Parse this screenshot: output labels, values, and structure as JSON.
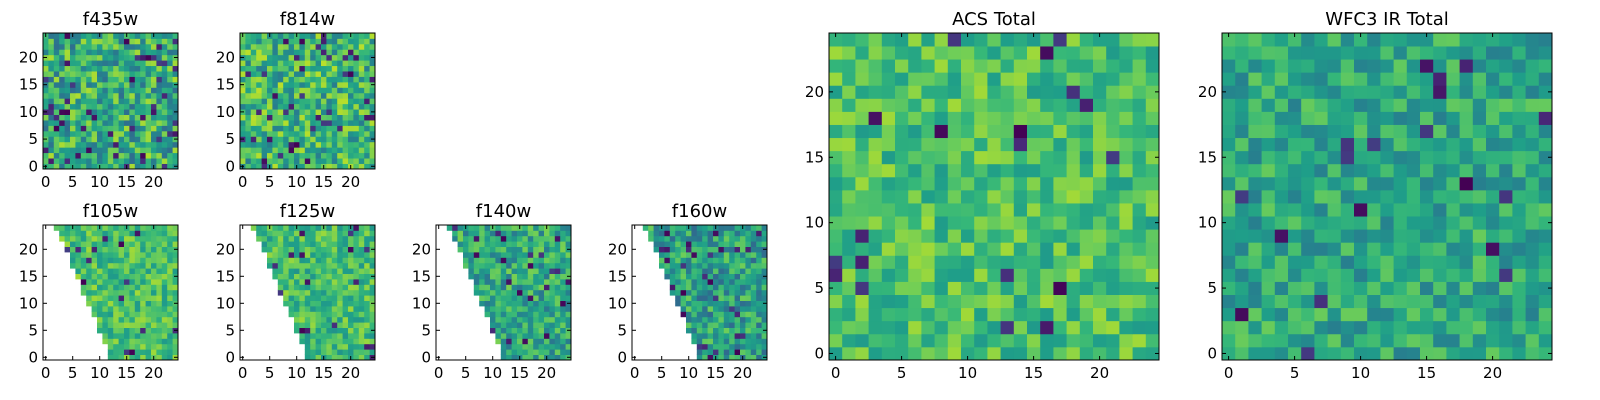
{
  "chart_data": [
    {
      "type": "heatmap",
      "title": "f435w",
      "x_ticks": [
        "0",
        "5",
        "10",
        "15",
        "20"
      ],
      "y_ticks": [
        "0",
        "5",
        "10",
        "15",
        "20"
      ],
      "xlim": [
        -0.5,
        24.5
      ],
      "ylim": [
        -0.5,
        24.5
      ],
      "colormap": "viridis",
      "grid": false,
      "mask": "none",
      "seed": 11,
      "base": 0.62,
      "spread": 0.26,
      "dark_fraction": 0.08
    },
    {
      "type": "heatmap",
      "title": "f814w",
      "x_ticks": [
        "0",
        "5",
        "10",
        "15",
        "20"
      ],
      "y_ticks": [
        "0",
        "5",
        "10",
        "15",
        "20"
      ],
      "xlim": [
        -0.5,
        24.5
      ],
      "ylim": [
        -0.5,
        24.5
      ],
      "colormap": "viridis",
      "grid": false,
      "mask": "none",
      "seed": 23,
      "base": 0.66,
      "spread": 0.24,
      "dark_fraction": 0.06
    },
    {
      "type": "heatmap",
      "title": "f105w",
      "x_ticks": [
        "0",
        "5",
        "10",
        "15",
        "20"
      ],
      "y_ticks": [
        "0",
        "5",
        "10",
        "15",
        "20"
      ],
      "xlim": [
        -0.5,
        24.5
      ],
      "ylim": [
        -0.5,
        24.5
      ],
      "colormap": "viridis",
      "grid": false,
      "mask": "left-diagonal",
      "seed": 37,
      "base": 0.7,
      "spread": 0.16,
      "dark_fraction": 0.02
    },
    {
      "type": "heatmap",
      "title": "f125w",
      "x_ticks": [
        "0",
        "5",
        "10",
        "15",
        "20"
      ],
      "y_ticks": [
        "0",
        "5",
        "10",
        "15",
        "20"
      ],
      "xlim": [
        -0.5,
        24.5
      ],
      "ylim": [
        -0.5,
        24.5
      ],
      "colormap": "viridis",
      "grid": false,
      "mask": "left-diagonal",
      "seed": 41,
      "base": 0.68,
      "spread": 0.17,
      "dark_fraction": 0.03
    },
    {
      "type": "heatmap",
      "title": "f140w",
      "x_ticks": [
        "0",
        "5",
        "10",
        "15",
        "20"
      ],
      "y_ticks": [
        "0",
        "5",
        "10",
        "15",
        "20"
      ],
      "xlim": [
        -0.5,
        24.5
      ],
      "ylim": [
        -0.5,
        24.5
      ],
      "colormap": "viridis",
      "grid": false,
      "mask": "left-diagonal",
      "seed": 53,
      "base": 0.6,
      "spread": 0.2,
      "dark_fraction": 0.04
    },
    {
      "type": "heatmap",
      "title": "f160w",
      "x_ticks": [
        "0",
        "5",
        "10",
        "15",
        "20"
      ],
      "y_ticks": [
        "0",
        "5",
        "10",
        "15",
        "20"
      ],
      "xlim": [
        -0.5,
        24.5
      ],
      "ylim": [
        -0.5,
        24.5
      ],
      "colormap": "viridis",
      "grid": false,
      "mask": "left-diagonal",
      "seed": 67,
      "base": 0.56,
      "spread": 0.22,
      "dark_fraction": 0.05
    },
    {
      "type": "heatmap",
      "title": "ACS Total",
      "x_ticks": [
        "0",
        "5",
        "10",
        "15",
        "20"
      ],
      "y_ticks": [
        "0",
        "5",
        "10",
        "15",
        "20"
      ],
      "xlim": [
        -0.5,
        24.5
      ],
      "ylim": [
        -0.5,
        24.5
      ],
      "colormap": "viridis",
      "grid": false,
      "mask": "none",
      "seed": 79,
      "base": 0.7,
      "spread": 0.16,
      "dark_fraction": 0.03
    },
    {
      "type": "heatmap",
      "title": "WFC3 IR Total",
      "x_ticks": [
        "0",
        "5",
        "10",
        "15",
        "20"
      ],
      "y_ticks": [
        "0",
        "5",
        "10",
        "15",
        "20"
      ],
      "xlim": [
        -0.5,
        24.5
      ],
      "ylim": [
        -0.5,
        24.5
      ],
      "colormap": "viridis",
      "grid": false,
      "mask": "none",
      "seed": 97,
      "base": 0.6,
      "spread": 0.17,
      "dark_fraction": 0.03
    }
  ]
}
